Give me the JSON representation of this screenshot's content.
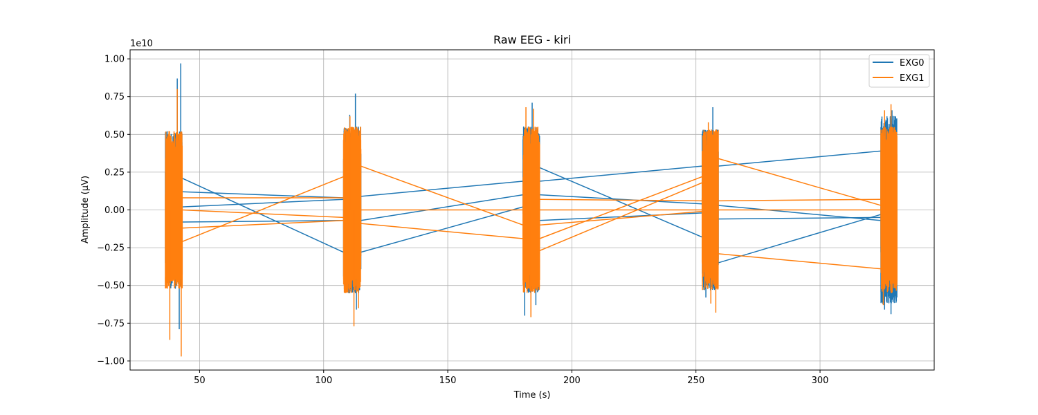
{
  "chart_data": {
    "type": "line",
    "title": "Raw EEG - kiri",
    "xlabel": "Time (s)",
    "ylabel": "Amplitude (µV)",
    "y_offset_label": "1e10",
    "y_scale": 10000000000,
    "xlim": [
      22,
      346
    ],
    "ylim": [
      -1.06,
      1.06
    ],
    "x_ticks": [
      50,
      100,
      150,
      200,
      250,
      300
    ],
    "x_tick_labels": [
      "50",
      "100",
      "150",
      "200",
      "250",
      "300"
    ],
    "y_ticks": [
      -1.0,
      -0.75,
      -0.5,
      -0.25,
      0.0,
      0.25,
      0.5,
      0.75,
      1.0
    ],
    "y_tick_labels": [
      "−1.00",
      "−0.75",
      "−0.50",
      "−0.25",
      "0.00",
      "0.25",
      "0.50",
      "0.75",
      "1.00"
    ],
    "grid": true,
    "legend_position": "top-right",
    "bursts": [
      {
        "x_start": 36.2,
        "x_end": 43.0
      },
      {
        "x_start": 108.0,
        "x_end": 115.0
      },
      {
        "x_start": 180.3,
        "x_end": 187.0
      },
      {
        "x_start": 252.5,
        "x_end": 259.0
      },
      {
        "x_start": 324.5,
        "x_end": 331.0
      }
    ],
    "series": [
      {
        "name": "EXG0",
        "color": "#1f77b4",
        "burst_envelope": [
          0.52,
          0.55,
          0.55,
          0.53,
          0.62
        ],
        "burst_peaks": [
          {
            "x": 41.0,
            "y": 0.87
          },
          {
            "x": 42.4,
            "y": 0.97
          },
          {
            "x": 41.8,
            "y": -0.79
          },
          {
            "x": 112.8,
            "y": 0.77
          },
          {
            "x": 110.5,
            "y": 0.63
          },
          {
            "x": 113.2,
            "y": -0.66
          },
          {
            "x": 184.0,
            "y": 0.71
          },
          {
            "x": 181.0,
            "y": -0.7
          },
          {
            "x": 185.5,
            "y": -0.63
          },
          {
            "x": 256.8,
            "y": 0.68
          },
          {
            "x": 254.0,
            "y": -0.58
          },
          {
            "x": 258.0,
            "y": -0.52
          },
          {
            "x": 329.0,
            "y": 0.66
          },
          {
            "x": 326.0,
            "y": -0.66
          },
          {
            "x": 328.6,
            "y": -0.69
          }
        ],
        "connectors": [
          {
            "x1": 43.0,
            "y1": 0.21,
            "x2": 108.0,
            "y2": -0.28
          },
          {
            "x1": 43.0,
            "y1": 0.12,
            "x2": 108.0,
            "y2": 0.08
          },
          {
            "x1": 43.0,
            "y1": -0.08,
            "x2": 108.0,
            "y2": -0.07
          },
          {
            "x1": 43.0,
            "y1": 0.02,
            "x2": 108.0,
            "y2": 0.07
          },
          {
            "x1": 115.0,
            "y1": 0.09,
            "x2": 180.3,
            "y2": 0.19
          },
          {
            "x1": 115.0,
            "y1": -0.07,
            "x2": 180.3,
            "y2": 0.1
          },
          {
            "x1": 115.0,
            "y1": -0.28,
            "x2": 180.3,
            "y2": 0.02
          },
          {
            "x1": 187.0,
            "y1": 0.28,
            "x2": 252.5,
            "y2": -0.18
          },
          {
            "x1": 187.0,
            "y1": 0.19,
            "x2": 252.5,
            "y2": 0.29
          },
          {
            "x1": 187.0,
            "y1": 0.1,
            "x2": 252.5,
            "y2": 0.04
          },
          {
            "x1": 187.0,
            "y1": -0.07,
            "x2": 252.5,
            "y2": -0.02
          },
          {
            "x1": 259.0,
            "y1": 0.29,
            "x2": 324.5,
            "y2": 0.39
          },
          {
            "x1": 259.0,
            "y1": -0.35,
            "x2": 324.5,
            "y2": -0.03
          },
          {
            "x1": 259.0,
            "y1": 0.03,
            "x2": 324.5,
            "y2": -0.07
          },
          {
            "x1": 259.0,
            "y1": -0.06,
            "x2": 324.5,
            "y2": -0.05
          }
        ]
      },
      {
        "name": "EXG1",
        "color": "#ff7f0e",
        "burst_envelope": [
          0.52,
          0.55,
          0.55,
          0.53,
          0.55
        ],
        "burst_peaks": [
          {
            "x": 41.0,
            "y": 0.8
          },
          {
            "x": 38.0,
            "y": -0.86
          },
          {
            "x": 42.6,
            "y": -0.97
          },
          {
            "x": 112.2,
            "y": -0.77
          },
          {
            "x": 110.6,
            "y": 0.62
          },
          {
            "x": 114.0,
            "y": -0.65
          },
          {
            "x": 183.5,
            "y": -0.71
          },
          {
            "x": 181.5,
            "y": 0.68
          },
          {
            "x": 184.5,
            "y": 0.67
          },
          {
            "x": 258.0,
            "y": -0.68
          },
          {
            "x": 255.0,
            "y": 0.58
          },
          {
            "x": 256.0,
            "y": -0.62
          },
          {
            "x": 328.6,
            "y": 0.7
          },
          {
            "x": 326.0,
            "y": 0.66
          },
          {
            "x": 325.5,
            "y": -0.63
          }
        ],
        "connectors": [
          {
            "x1": 43.0,
            "y1": -0.21,
            "x2": 108.0,
            "y2": 0.22
          },
          {
            "x1": 43.0,
            "y1": -0.12,
            "x2": 108.0,
            "y2": -0.07
          },
          {
            "x1": 43.0,
            "y1": 0.08,
            "x2": 108.0,
            "y2": 0.08
          },
          {
            "x1": 43.0,
            "y1": 0.0,
            "x2": 108.0,
            "y2": -0.05
          },
          {
            "x1": 115.0,
            "y1": 0.29,
            "x2": 180.3,
            "y2": -0.1
          },
          {
            "x1": 115.0,
            "y1": -0.09,
            "x2": 180.3,
            "y2": -0.19
          },
          {
            "x1": 115.0,
            "y1": 0.0,
            "x2": 180.3,
            "y2": 0.0
          },
          {
            "x1": 187.0,
            "y1": -0.27,
            "x2": 252.5,
            "y2": 0.18
          },
          {
            "x1": 187.0,
            "y1": -0.19,
            "x2": 252.5,
            "y2": 0.22
          },
          {
            "x1": 187.0,
            "y1": -0.1,
            "x2": 252.5,
            "y2": -0.01
          },
          {
            "x1": 187.0,
            "y1": 0.0,
            "x2": 252.5,
            "y2": 0.0
          },
          {
            "x1": 187.0,
            "y1": 0.07,
            "x2": 252.5,
            "y2": 0.06
          },
          {
            "x1": 259.0,
            "y1": -0.29,
            "x2": 324.5,
            "y2": -0.39
          },
          {
            "x1": 259.0,
            "y1": 0.34,
            "x2": 324.5,
            "y2": 0.03
          },
          {
            "x1": 259.0,
            "y1": 0.06,
            "x2": 324.5,
            "y2": 0.07
          },
          {
            "x1": 259.0,
            "y1": 0.0,
            "x2": 324.5,
            "y2": 0.0
          }
        ]
      }
    ]
  }
}
